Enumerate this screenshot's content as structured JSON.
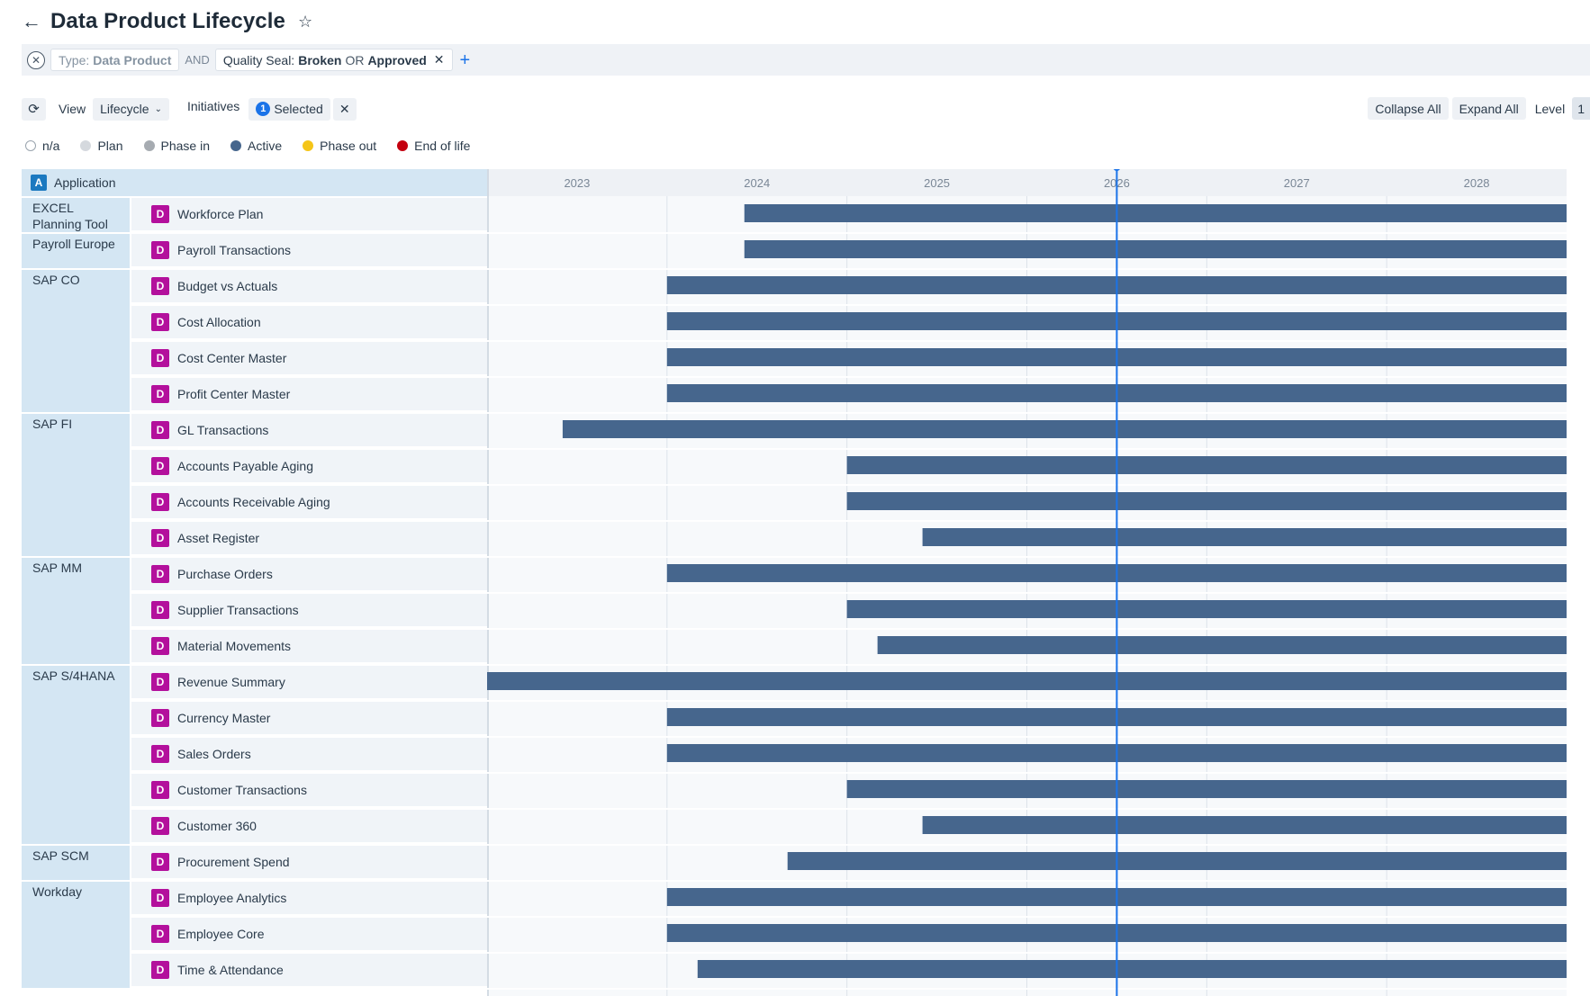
{
  "header": {
    "title": "Data Product Lifecycle"
  },
  "filters": {
    "chip1": {
      "key": "Type:",
      "value": "Data Product"
    },
    "join": "AND",
    "chip2": {
      "key": "Quality Seal:",
      "value1": "Broken",
      "op": "OR",
      "value2": "Approved"
    }
  },
  "toolbar": {
    "view_label": "View",
    "view_value": "Lifecycle",
    "initiatives_label": "Initiatives",
    "selected_count": "1",
    "selected_label": "Selected",
    "collapse_all": "Collapse All",
    "expand_all": "Expand All",
    "level_label": "Level",
    "level_value": "1"
  },
  "legend": [
    {
      "label": "n/a",
      "color": "#ffffff"
    },
    {
      "label": "Plan",
      "color": "#d5d9de"
    },
    {
      "label": "Phase in",
      "color": "#a6abb1"
    },
    {
      "label": "Active",
      "color": "#46668d"
    },
    {
      "label": "Phase out",
      "color": "#f5c518"
    },
    {
      "label": "End of life",
      "color": "#c4000f"
    }
  ],
  "table": {
    "column_header": "Application",
    "column_badge": "A",
    "product_badge": "D",
    "groups": [
      {
        "name": "EXCEL Planning Tool",
        "products": [
          {
            "name": "Workforce Plan",
            "start": 2023.93
          }
        ]
      },
      {
        "name": "Payroll Europe",
        "products": [
          {
            "name": "Payroll Transactions",
            "start": 2023.93
          }
        ]
      },
      {
        "name": "SAP CO",
        "products": [
          {
            "name": "Budget vs Actuals",
            "start": 2023.5
          },
          {
            "name": "Cost Allocation",
            "start": 2023.5
          },
          {
            "name": "Cost Center Master",
            "start": 2023.5
          },
          {
            "name": "Profit Center Master",
            "start": 2023.5
          }
        ]
      },
      {
        "name": "SAP FI",
        "products": [
          {
            "name": "GL Transactions",
            "start": 2022.92
          },
          {
            "name": "Accounts Payable Aging",
            "start": 2024.5
          },
          {
            "name": "Accounts Receivable Aging",
            "start": 2024.5
          },
          {
            "name": "Asset Register",
            "start": 2024.92
          }
        ]
      },
      {
        "name": "SAP MM",
        "products": [
          {
            "name": "Purchase Orders",
            "start": 2023.5
          },
          {
            "name": "Supplier Transactions",
            "start": 2024.5
          },
          {
            "name": "Material Movements",
            "start": 2024.67
          }
        ]
      },
      {
        "name": "SAP S/4HANA",
        "products": [
          {
            "name": "Revenue Summary",
            "start": 2022.5
          },
          {
            "name": "Currency Master",
            "start": 2023.5
          },
          {
            "name": "Sales Orders",
            "start": 2023.5
          },
          {
            "name": "Customer Transactions",
            "start": 2024.5
          },
          {
            "name": "Customer 360",
            "start": 2024.92
          }
        ]
      },
      {
        "name": "SAP SCM",
        "products": [
          {
            "name": "Procurement Spend",
            "start": 2024.17
          }
        ]
      },
      {
        "name": "Workday",
        "products": [
          {
            "name": "Employee Analytics",
            "start": 2023.5
          },
          {
            "name": "Employee Core",
            "start": 2023.5
          },
          {
            "name": "Time & Attendance",
            "start": 2023.67
          }
        ]
      }
    ]
  },
  "chart_data": {
    "type": "gantt",
    "x_ticks": [
      "2023",
      "2024",
      "2025",
      "2026",
      "2027",
      "2028"
    ],
    "xlim": [
      2022.5,
      2028.5
    ],
    "today": 2026.0,
    "bar_status": "Active",
    "bar_color": "#46668d",
    "today_color": "#1a73e8"
  }
}
